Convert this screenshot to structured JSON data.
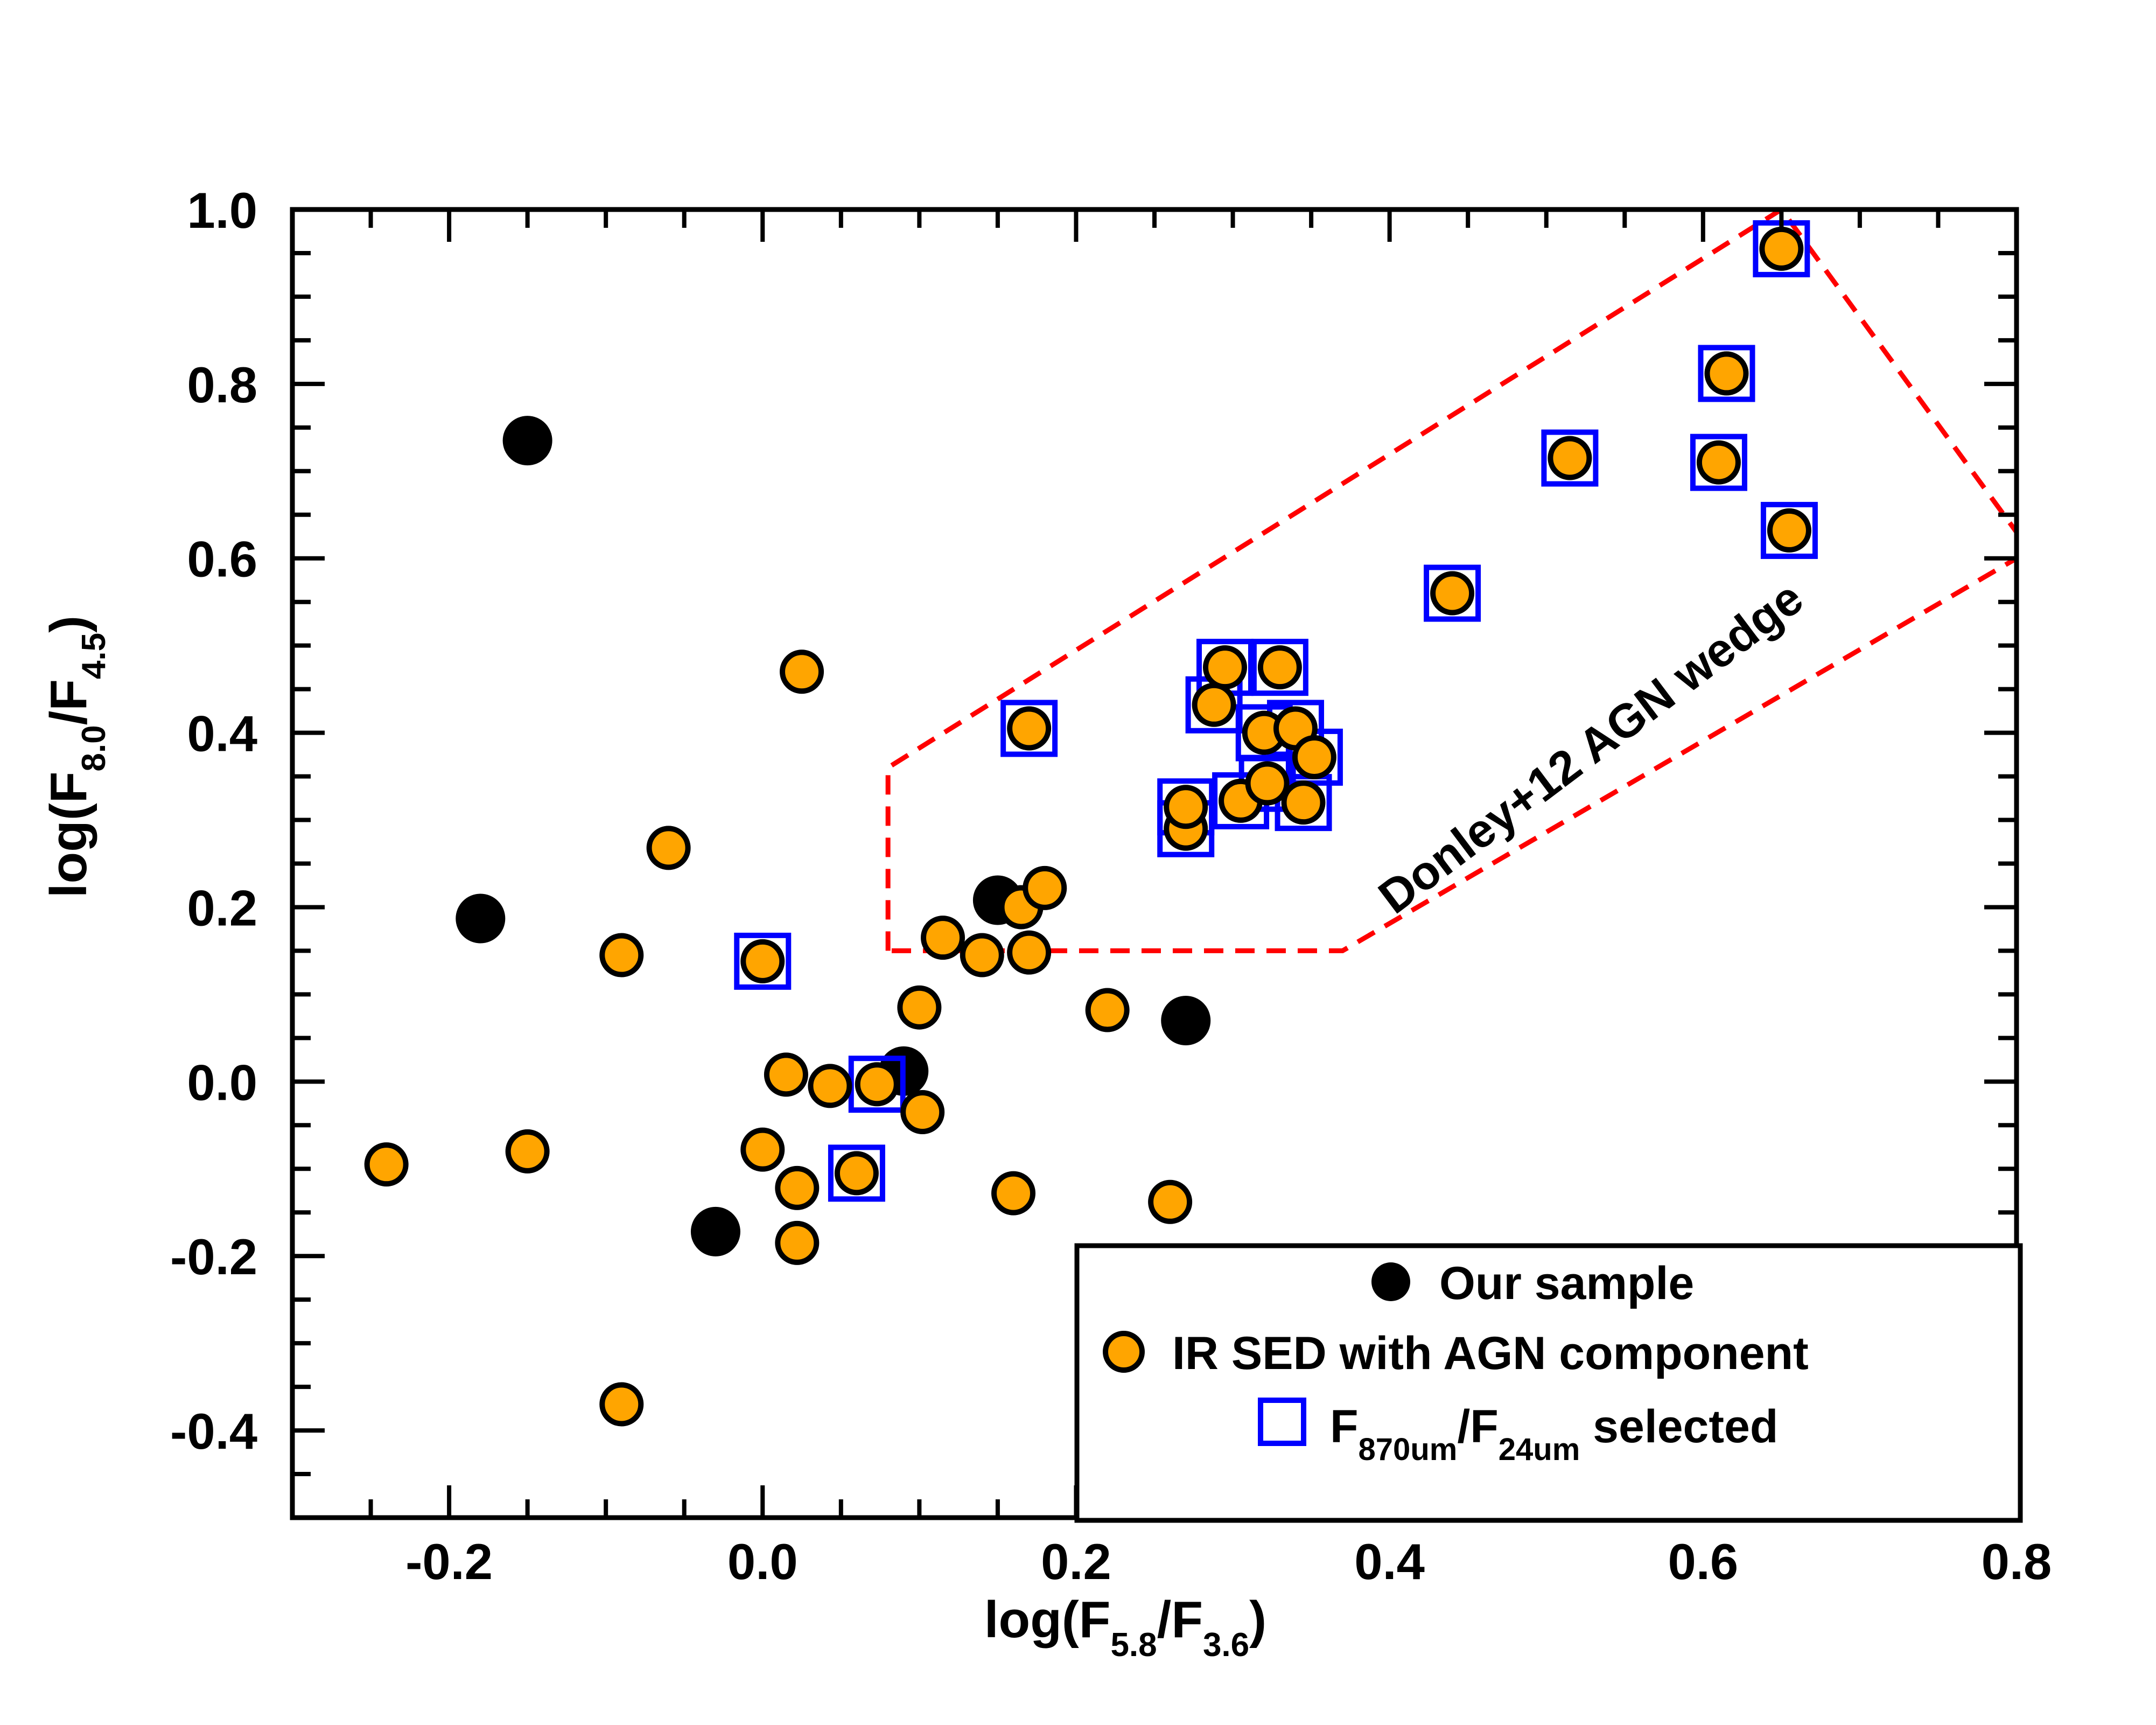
{
  "chart_data": {
    "type": "scatter",
    "xlim": [
      -0.3,
      0.8
    ],
    "ylim": [
      -0.5,
      1.0
    ],
    "x_ticks": [
      "-0.2",
      "0.0",
      "0.2",
      "0.4",
      "0.6",
      "0.8"
    ],
    "x_tick_values": [
      -0.2,
      0.0,
      0.2,
      0.4,
      0.6,
      0.8
    ],
    "y_ticks": [
      "-0.4",
      "-0.2",
      "0.0",
      "0.2",
      "0.4",
      "0.6",
      "0.8",
      "1.0"
    ],
    "y_tick_values": [
      -0.4,
      -0.2,
      0.0,
      0.2,
      0.4,
      0.6,
      0.8,
      1.0
    ],
    "xlabel": {
      "base": "log(F",
      "sub1": "5.8",
      "mid": "/F",
      "sub2": "3.6",
      "end": ")"
    },
    "ylabel": {
      "base": "log(F",
      "sub1": "8.0",
      "mid": "/F",
      "sub2": "4.5",
      "end": ")"
    },
    "legend": {
      "position": "bottom-right",
      "entries": [
        {
          "label": "Our sample"
        },
        {
          "label": "IR SED with AGN component"
        },
        {
          "label_pre": "F",
          "sub1": "870um",
          "label_mid": "/F",
          "sub2": "24um",
          "label_post": " selected"
        }
      ]
    },
    "annotation": "Donley+12 AGN wedge",
    "colors": {
      "our_sample": "#000000",
      "agn_component": "#ffa500",
      "submm_selected": "#0000ff",
      "wedge": "#ff0000"
    },
    "wedge_line": [
      {
        "x": 0.08,
        "y": 0.15
      },
      {
        "x": 0.08,
        "y": 0.36
      },
      {
        "x": 0.65,
        "y": 1.0
      },
      {
        "x": 0.8,
        "y": 0.63
      },
      {
        "x": 0.8,
        "y": 0.6
      },
      {
        "x": 0.37,
        "y": 0.15
      },
      {
        "x": 0.08,
        "y": 0.15
      }
    ],
    "series": [
      {
        "name": "Our sample",
        "points": [
          {
            "x": -0.15,
            "y": 0.735
          },
          {
            "x": -0.18,
            "y": 0.187
          },
          {
            "x": -0.03,
            "y": -0.172
          },
          {
            "x": 0.09,
            "y": 0.012
          },
          {
            "x": 0.15,
            "y": 0.208
          },
          {
            "x": 0.27,
            "y": 0.07
          }
        ]
      },
      {
        "name": "IR SED with AGN component",
        "points": [
          {
            "x": -0.24,
            "y": -0.095
          },
          {
            "x": -0.15,
            "y": -0.08
          },
          {
            "x": -0.09,
            "y": 0.145
          },
          {
            "x": -0.09,
            "y": -0.37
          },
          {
            "x": -0.06,
            "y": 0.268
          },
          {
            "x": 0.025,
            "y": 0.47
          },
          {
            "x": 0.0,
            "y": -0.078
          },
          {
            "x": 0.015,
            "y": 0.008
          },
          {
            "x": 0.022,
            "y": -0.122
          },
          {
            "x": 0.022,
            "y": -0.185
          },
          {
            "x": 0.043,
            "y": -0.005
          },
          {
            "x": 0.1,
            "y": 0.085
          },
          {
            "x": 0.102,
            "y": -0.035
          },
          {
            "x": 0.115,
            "y": 0.165
          },
          {
            "x": 0.14,
            "y": 0.145
          },
          {
            "x": 0.16,
            "y": -0.128
          },
          {
            "x": 0.165,
            "y": 0.2
          },
          {
            "x": 0.17,
            "y": 0.148
          },
          {
            "x": 0.18,
            "y": 0.222
          },
          {
            "x": 0.22,
            "y": 0.082
          },
          {
            "x": 0.26,
            "y": -0.138
          },
          {
            "x": 0.0,
            "y": 0.138
          },
          {
            "x": 0.06,
            "y": -0.105
          },
          {
            "x": 0.073,
            "y": -0.003
          },
          {
            "x": 0.17,
            "y": 0.405
          },
          {
            "x": 0.27,
            "y": 0.29
          },
          {
            "x": 0.27,
            "y": 0.315
          },
          {
            "x": 0.288,
            "y": 0.432
          },
          {
            "x": 0.295,
            "y": 0.475
          },
          {
            "x": 0.305,
            "y": 0.322
          },
          {
            "x": 0.32,
            "y": 0.4
          },
          {
            "x": 0.322,
            "y": 0.342
          },
          {
            "x": 0.33,
            "y": 0.475
          },
          {
            "x": 0.34,
            "y": 0.405
          },
          {
            "x": 0.345,
            "y": 0.32
          },
          {
            "x": 0.352,
            "y": 0.372
          },
          {
            "x": 0.44,
            "y": 0.56
          },
          {
            "x": 0.515,
            "y": 0.715
          },
          {
            "x": 0.61,
            "y": 0.71
          },
          {
            "x": 0.615,
            "y": 0.812
          },
          {
            "x": 0.65,
            "y": 0.955
          },
          {
            "x": 0.655,
            "y": 0.632
          }
        ]
      },
      {
        "name": "F870um/F24um selected",
        "points": [
          {
            "x": 0.0,
            "y": 0.138
          },
          {
            "x": 0.06,
            "y": -0.105
          },
          {
            "x": 0.073,
            "y": -0.003
          },
          {
            "x": 0.17,
            "y": 0.405
          },
          {
            "x": 0.27,
            "y": 0.29
          },
          {
            "x": 0.27,
            "y": 0.315
          },
          {
            "x": 0.288,
            "y": 0.432
          },
          {
            "x": 0.295,
            "y": 0.475
          },
          {
            "x": 0.305,
            "y": 0.322
          },
          {
            "x": 0.32,
            "y": 0.4
          },
          {
            "x": 0.322,
            "y": 0.342
          },
          {
            "x": 0.33,
            "y": 0.475
          },
          {
            "x": 0.34,
            "y": 0.405
          },
          {
            "x": 0.345,
            "y": 0.32
          },
          {
            "x": 0.352,
            "y": 0.372
          },
          {
            "x": 0.44,
            "y": 0.56
          },
          {
            "x": 0.515,
            "y": 0.715
          },
          {
            "x": 0.61,
            "y": 0.71
          },
          {
            "x": 0.615,
            "y": 0.812
          },
          {
            "x": 0.65,
            "y": 0.955
          },
          {
            "x": 0.655,
            "y": 0.632
          }
        ]
      }
    ]
  }
}
